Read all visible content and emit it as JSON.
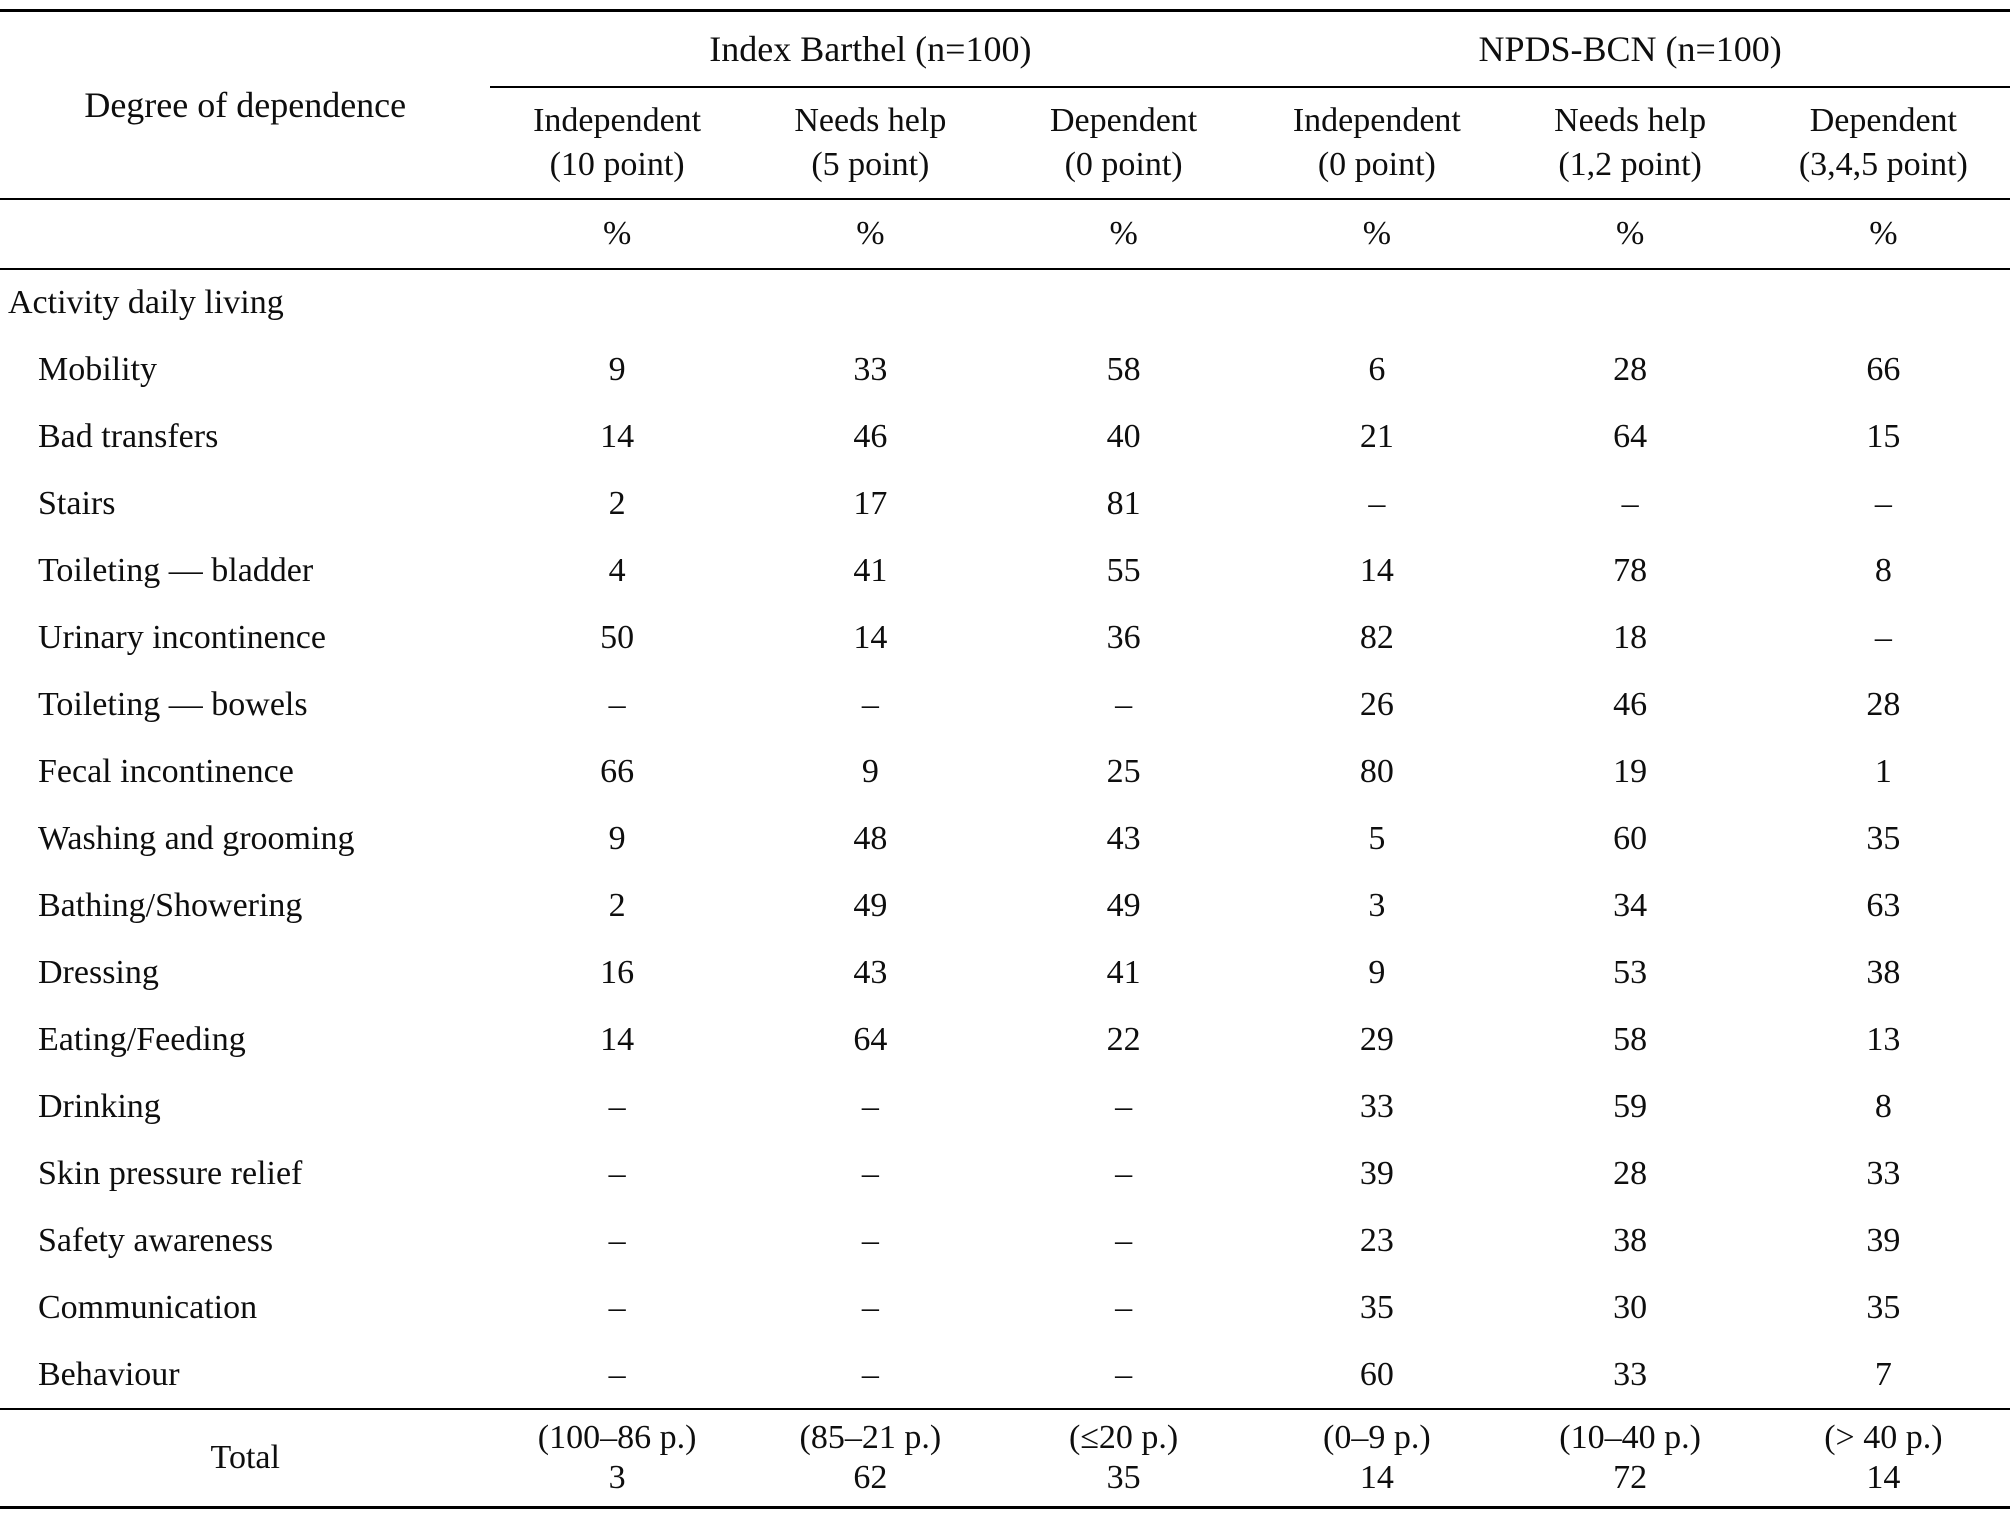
{
  "table": {
    "row_header_label": "Degree of dependence",
    "groups": [
      {
        "label": "Index Barthel (n=100)",
        "columns": [
          {
            "line1": "Independent",
            "line2": "(10 point)"
          },
          {
            "line1": "Needs help",
            "line2": "(5 point)"
          },
          {
            "line1": "Dependent",
            "line2": "(0 point)"
          }
        ]
      },
      {
        "label": "NPDS-BCN (n=100)",
        "columns": [
          {
            "line1": "Independent",
            "line2": "(0 point)"
          },
          {
            "line1": "Needs help",
            "line2": "(1,2 point)"
          },
          {
            "line1": "Dependent",
            "line2": "(3,4,5 point)"
          }
        ]
      }
    ],
    "unit_row": [
      "%",
      "%",
      "%",
      "%",
      "%",
      "%"
    ],
    "section_label": "Activity daily living",
    "rows": [
      {
        "label": "Mobility",
        "values": [
          "9",
          "33",
          "58",
          "6",
          "28",
          "66"
        ]
      },
      {
        "label": "Bad transfers",
        "values": [
          "14",
          "46",
          "40",
          "21",
          "64",
          "15"
        ]
      },
      {
        "label": "Stairs",
        "values": [
          "2",
          "17",
          "81",
          "–",
          "–",
          "–"
        ]
      },
      {
        "label": "Toileting — bladder",
        "values": [
          "4",
          "41",
          "55",
          "14",
          "78",
          "8"
        ]
      },
      {
        "label": "Urinary incontinence",
        "values": [
          "50",
          "14",
          "36",
          "82",
          "18",
          "–"
        ]
      },
      {
        "label": "Toileting — bowels",
        "values": [
          "–",
          "–",
          "–",
          "26",
          "46",
          "28"
        ]
      },
      {
        "label": "Fecal incontinence",
        "values": [
          "66",
          "9",
          "25",
          "80",
          "19",
          "1"
        ]
      },
      {
        "label": "Washing and grooming",
        "values": [
          "9",
          "48",
          "43",
          "5",
          "60",
          "35"
        ]
      },
      {
        "label": "Bathing/Showering",
        "values": [
          "2",
          "49",
          "49",
          "3",
          "34",
          "63"
        ]
      },
      {
        "label": "Dressing",
        "values": [
          "16",
          "43",
          "41",
          "9",
          "53",
          "38"
        ]
      },
      {
        "label": "Eating/Feeding",
        "values": [
          "14",
          "64",
          "22",
          "29",
          "58",
          "13"
        ]
      },
      {
        "label": "Drinking",
        "values": [
          "–",
          "–",
          "–",
          "33",
          "59",
          "8"
        ]
      },
      {
        "label": "Skin pressure relief",
        "values": [
          "–",
          "–",
          "–",
          "39",
          "28",
          "33"
        ]
      },
      {
        "label": "Safety awareness",
        "values": [
          "–",
          "–",
          "–",
          "23",
          "38",
          "39"
        ]
      },
      {
        "label": "Communication",
        "values": [
          "–",
          "–",
          "–",
          "35",
          "30",
          "35"
        ]
      },
      {
        "label": "Behaviour",
        "values": [
          "–",
          "–",
          "–",
          "60",
          "33",
          "7"
        ]
      }
    ],
    "total": {
      "label": "Total",
      "cells": [
        {
          "range": "(100–86 p.)",
          "value": "3"
        },
        {
          "range": "(85–21 p.)",
          "value": "62"
        },
        {
          "range": "(≤20 p.)",
          "value": "35"
        },
        {
          "range": "(0–9 p.)",
          "value": "14"
        },
        {
          "range": "(10–40 p.)",
          "value": "72"
        },
        {
          "range": "(> 40 p.)",
          "value": "14"
        }
      ]
    }
  }
}
